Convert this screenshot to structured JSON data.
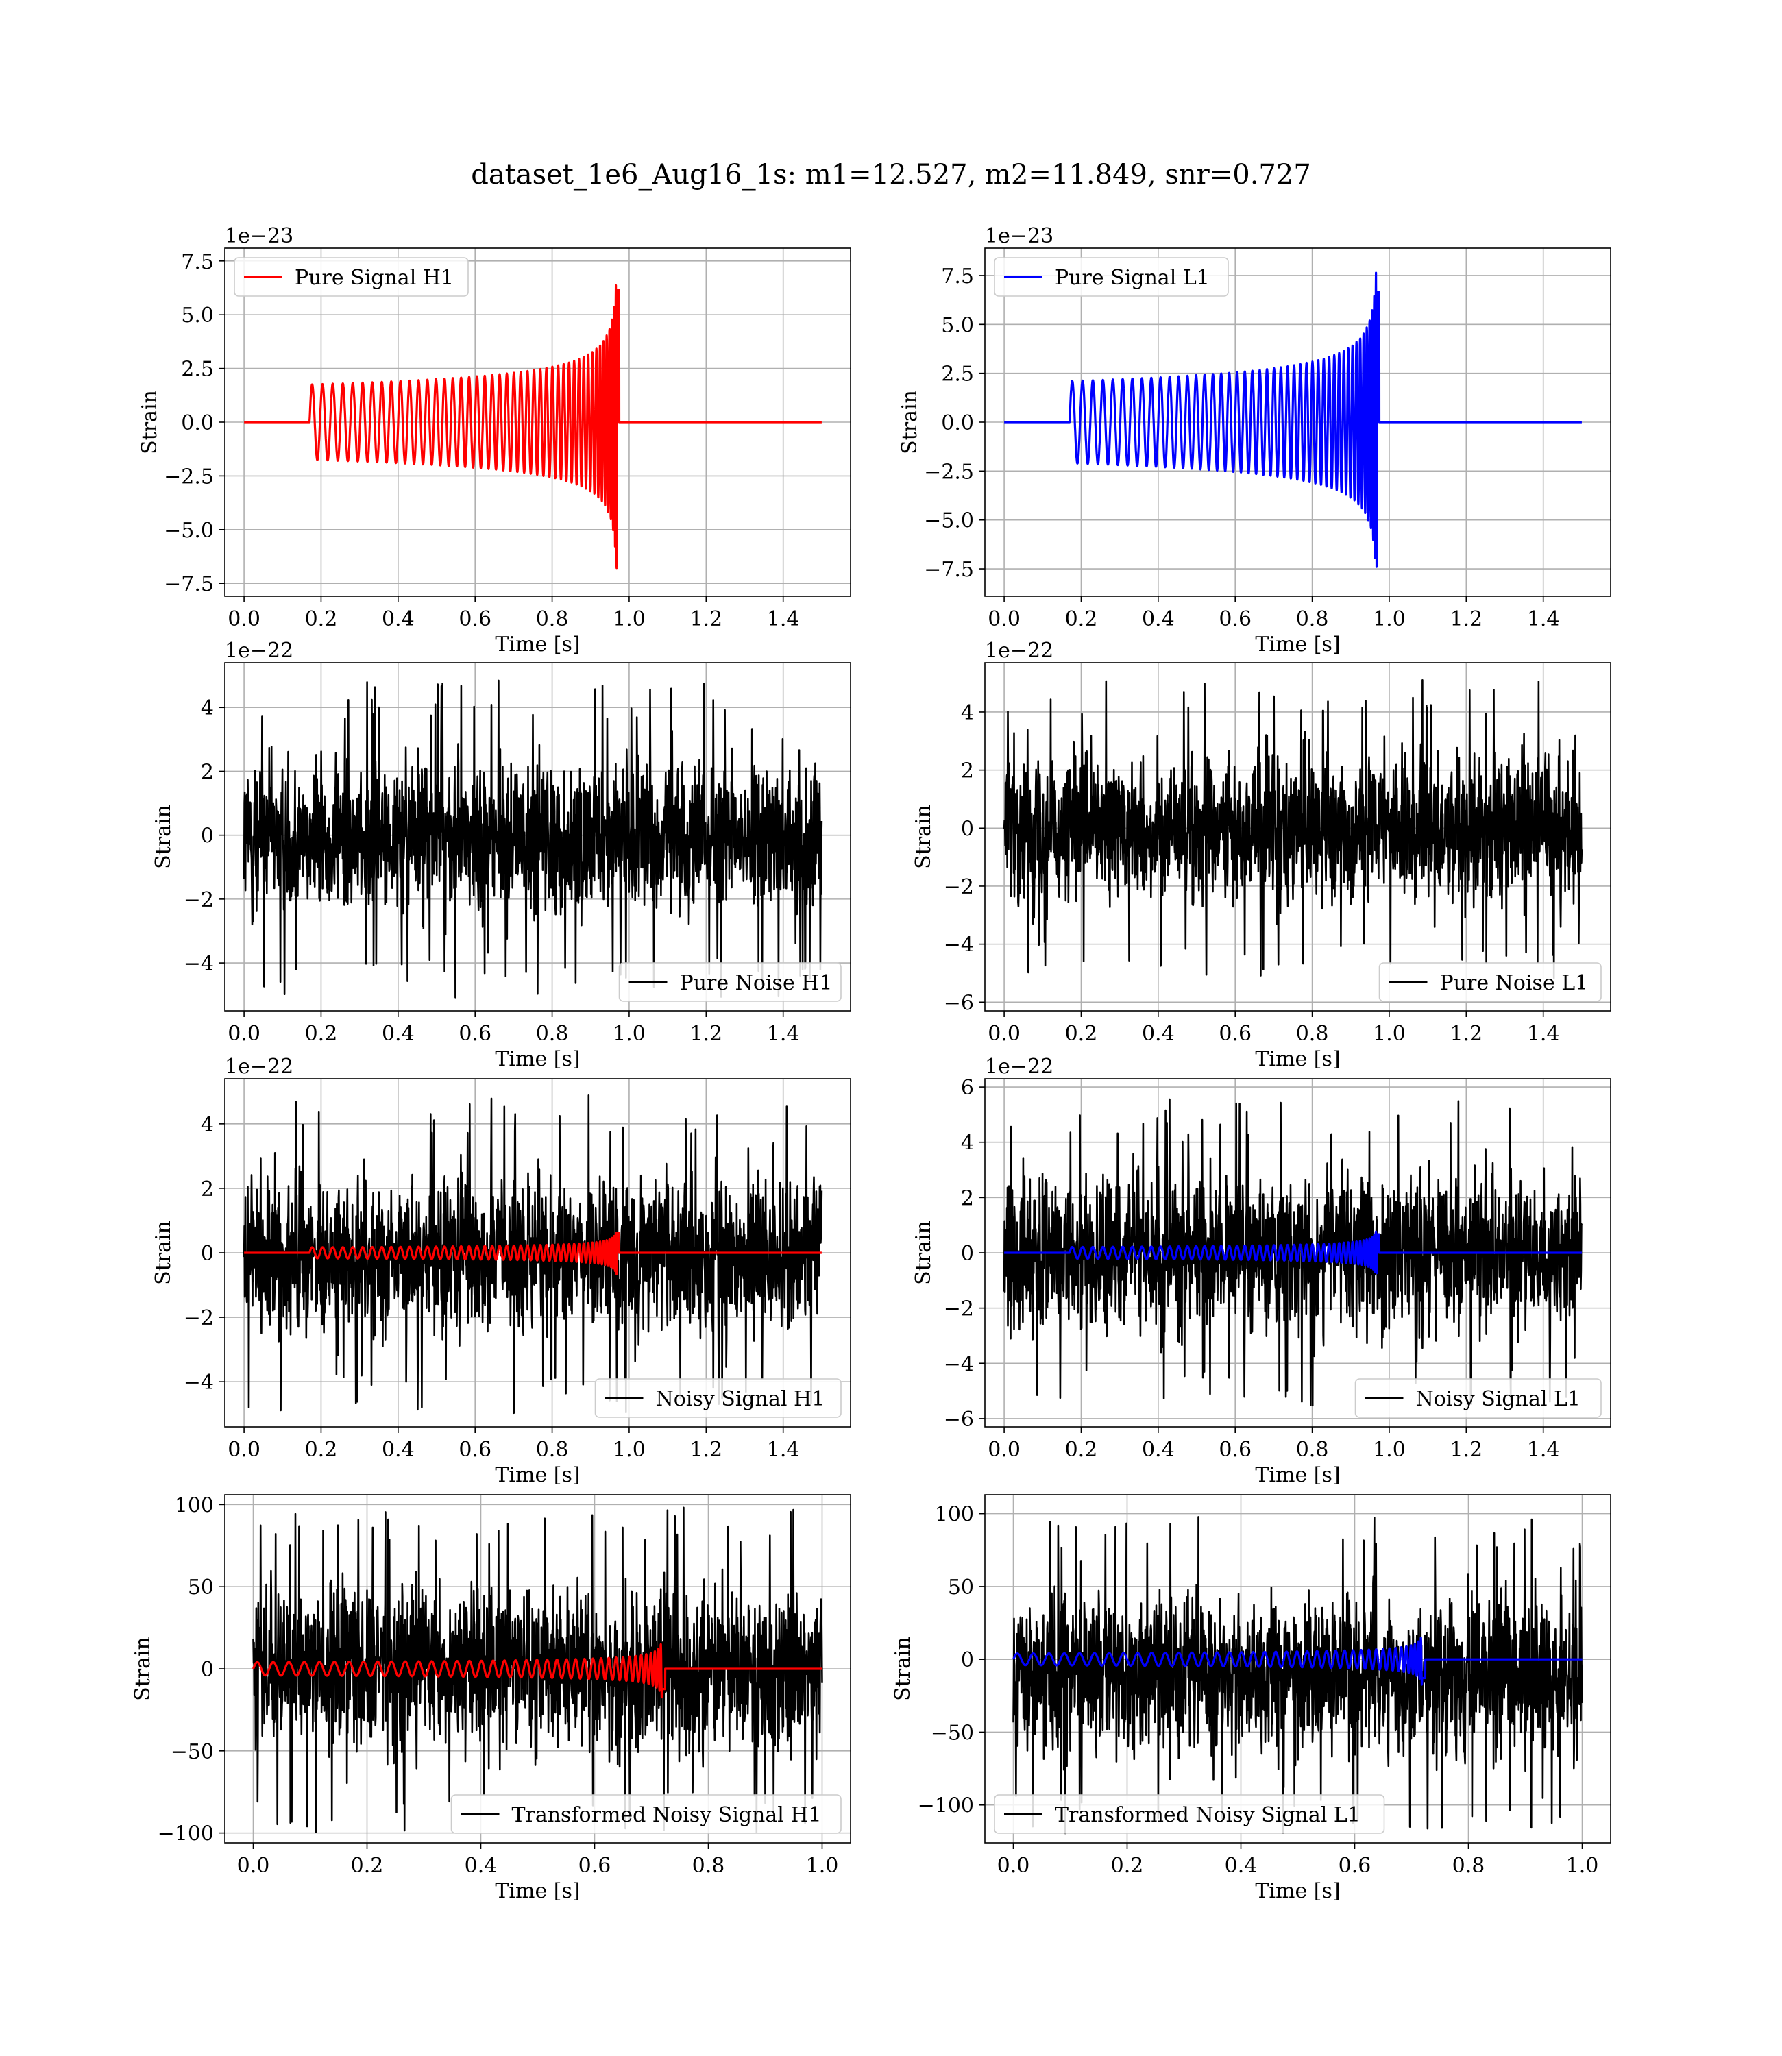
{
  "figure": {
    "title": "dataset_1e6_Aug16_1s: m1=12.527, m2=11.849, snr=0.727"
  },
  "colors": {
    "signal_h1": "#ff0000",
    "signal_l1": "#0000ff",
    "noise": "#000000",
    "grid": "#b0b0b0"
  },
  "chart_data": [
    {
      "type": "line",
      "panel": "H1 pure signal",
      "xlabel": "Time [s]",
      "ylabel": "Strain",
      "offset_text": "1e−23",
      "xlim": [
        -0.05,
        1.575
      ],
      "ylim": [
        -8.1,
        8.1
      ],
      "xticks": [
        0.0,
        0.2,
        0.4,
        0.6,
        0.8,
        1.0,
        1.2,
        1.4
      ],
      "xticklabels": [
        "0.0",
        "0.2",
        "0.4",
        "0.6",
        "0.8",
        "1.0",
        "1.2",
        "1.4"
      ],
      "yticks": [
        -7.5,
        -5.0,
        -2.5,
        0.0,
        2.5,
        5.0,
        7.5
      ],
      "yticklabels": [
        "−7.5",
        "−5.0",
        "−2.5",
        "0.0",
        "2.5",
        "5.0",
        "7.5"
      ],
      "grid": true,
      "legend_loc": "upper left",
      "series": [
        {
          "name": "Pure Signal H1",
          "kind": "chirp",
          "color": "#ff0000",
          "x_range": [
            0.0,
            1.5
          ],
          "onset": 0.17,
          "merger": 0.97,
          "early_amp": 1.75,
          "peak_amp": 7.3
        }
      ]
    },
    {
      "type": "line",
      "panel": "L1 pure signal",
      "xlabel": "Time [s]",
      "ylabel": "Strain",
      "offset_text": "1e−23",
      "xlim": [
        -0.05,
        1.575
      ],
      "ylim": [
        -8.9,
        8.9
      ],
      "xticks": [
        0.0,
        0.2,
        0.4,
        0.6,
        0.8,
        1.0,
        1.2,
        1.4
      ],
      "xticklabels": [
        "0.0",
        "0.2",
        "0.4",
        "0.6",
        "0.8",
        "1.0",
        "1.2",
        "1.4"
      ],
      "yticks": [
        -7.5,
        -5.0,
        -2.5,
        0.0,
        2.5,
        5.0,
        7.5
      ],
      "yticklabels": [
        "−7.5",
        "−5.0",
        "−2.5",
        "0.0",
        "2.5",
        "5.0",
        "7.5"
      ],
      "grid": true,
      "legend_loc": "upper left",
      "series": [
        {
          "name": "Pure Signal L1",
          "kind": "chirp",
          "color": "#0000ff",
          "x_range": [
            0.0,
            1.5
          ],
          "onset": 0.17,
          "merger": 0.97,
          "early_amp": 2.1,
          "peak_amp": 7.9
        }
      ]
    },
    {
      "type": "line",
      "panel": "H1 pure noise",
      "xlabel": "Time [s]",
      "ylabel": "Strain",
      "offset_text": "1e−22",
      "xlim": [
        -0.05,
        1.575
      ],
      "ylim": [
        -5.5,
        5.4
      ],
      "xticks": [
        0.0,
        0.2,
        0.4,
        0.6,
        0.8,
        1.0,
        1.2,
        1.4
      ],
      "xticklabels": [
        "0.0",
        "0.2",
        "0.4",
        "0.6",
        "0.8",
        "1.0",
        "1.2",
        "1.4"
      ],
      "yticks": [
        -4,
        -2,
        0,
        2,
        4
      ],
      "yticklabels": [
        "−4",
        "−2",
        "0",
        "2",
        "4"
      ],
      "grid": true,
      "legend_loc": "lower right",
      "series": [
        {
          "name": "Pure Noise H1",
          "kind": "noise",
          "color": "#000000",
          "x_range": [
            0.0,
            1.5
          ],
          "range": [
            -5.1,
            4.9
          ]
        }
      ]
    },
    {
      "type": "line",
      "panel": "L1 pure noise",
      "xlabel": "Time [s]",
      "ylabel": "Strain",
      "offset_text": "1e−22",
      "xlim": [
        -0.05,
        1.575
      ],
      "ylim": [
        -6.3,
        5.7
      ],
      "xticks": [
        0.0,
        0.2,
        0.4,
        0.6,
        0.8,
        1.0,
        1.2,
        1.4
      ],
      "xticklabels": [
        "0.0",
        "0.2",
        "0.4",
        "0.6",
        "0.8",
        "1.0",
        "1.2",
        "1.4"
      ],
      "yticks": [
        -6,
        -4,
        -2,
        0,
        2,
        4
      ],
      "yticklabels": [
        "−6",
        "−4",
        "−2",
        "0",
        "2",
        "4"
      ],
      "grid": true,
      "legend_loc": "lower right",
      "series": [
        {
          "name": "Pure Noise L1",
          "kind": "noise",
          "color": "#000000",
          "x_range": [
            0.0,
            1.5
          ],
          "range": [
            -5.2,
            5.2
          ]
        }
      ]
    },
    {
      "type": "line",
      "panel": "H1 noisy signal",
      "xlabel": "Time [s]",
      "ylabel": "Strain",
      "offset_text": "1e−22",
      "xlim": [
        -0.05,
        1.575
      ],
      "ylim": [
        -5.4,
        5.4
      ],
      "xticks": [
        0.0,
        0.2,
        0.4,
        0.6,
        0.8,
        1.0,
        1.2,
        1.4
      ],
      "xticklabels": [
        "0.0",
        "0.2",
        "0.4",
        "0.6",
        "0.8",
        "1.0",
        "1.2",
        "1.4"
      ],
      "yticks": [
        -4,
        -2,
        0,
        2,
        4
      ],
      "yticklabels": [
        "−4",
        "−2",
        "0",
        "2",
        "4"
      ],
      "grid": true,
      "legend_loc": "lower right",
      "series": [
        {
          "name": "Noisy Signal H1",
          "kind": "noise",
          "color": "#000000",
          "x_range": [
            0.0,
            1.5
          ],
          "range": [
            -5.0,
            4.9
          ]
        },
        {
          "kind": "chirp",
          "color": "#ff0000",
          "x_range": [
            0.0,
            1.5
          ],
          "onset": 0.17,
          "merger": 0.97,
          "early_amp": 0.17,
          "peak_amp": 0.73
        }
      ]
    },
    {
      "type": "line",
      "panel": "L1 noisy signal",
      "xlabel": "Time [s]",
      "ylabel": "Strain",
      "offset_text": "1e−22",
      "xlim": [
        -0.05,
        1.575
      ],
      "ylim": [
        -6.3,
        6.3
      ],
      "xticks": [
        0.0,
        0.2,
        0.4,
        0.6,
        0.8,
        1.0,
        1.2,
        1.4
      ],
      "xticklabels": [
        "0.0",
        "0.2",
        "0.4",
        "0.6",
        "0.8",
        "1.0",
        "1.2",
        "1.4"
      ],
      "yticks": [
        -6,
        -4,
        -2,
        0,
        2,
        4,
        6
      ],
      "yticklabels": [
        "−6",
        "−4",
        "−2",
        "0",
        "2",
        "4",
        "6"
      ],
      "grid": true,
      "legend_loc": "lower right",
      "series": [
        {
          "name": "Noisy Signal L1",
          "kind": "noise",
          "color": "#000000",
          "x_range": [
            0.0,
            1.5
          ],
          "range": [
            -5.6,
            5.6
          ]
        },
        {
          "kind": "chirp",
          "color": "#0000ff",
          "x_range": [
            0.0,
            1.5
          ],
          "onset": 0.17,
          "merger": 0.97,
          "early_amp": 0.21,
          "peak_amp": 0.79
        }
      ]
    },
    {
      "type": "line",
      "panel": "H1 transformed",
      "xlabel": "Time [s]",
      "ylabel": "Strain",
      "offset_text": "",
      "xlim": [
        -0.05,
        1.05
      ],
      "ylim": [
        -106,
        106
      ],
      "xticks": [
        0.0,
        0.2,
        0.4,
        0.6,
        0.8,
        1.0
      ],
      "xticklabels": [
        "0.0",
        "0.2",
        "0.4",
        "0.6",
        "0.8",
        "1.0"
      ],
      "yticks": [
        -100,
        -50,
        0,
        50,
        100
      ],
      "yticklabels": [
        "−100",
        "−50",
        "0",
        "50",
        "100"
      ],
      "grid": true,
      "legend_loc": "lower right",
      "series": [
        {
          "name": "Transformed Noisy Signal H1",
          "kind": "noise",
          "color": "#000000",
          "x_range": [
            0.0,
            1.0
          ],
          "range": [
            -100,
            100
          ]
        },
        {
          "kind": "chirp",
          "color": "#ff0000",
          "x_range": [
            0.0,
            1.0
          ],
          "onset": 0.0,
          "merger": 0.72,
          "early_amp": 4,
          "peak_amp": 18
        }
      ]
    },
    {
      "type": "line",
      "panel": "L1 transformed",
      "xlabel": "Time [s]",
      "ylabel": "Strain",
      "offset_text": "",
      "xlim": [
        -0.05,
        1.05
      ],
      "ylim": [
        -126,
        113
      ],
      "xticks": [
        0.0,
        0.2,
        0.4,
        0.6,
        0.8,
        1.0
      ],
      "xticklabels": [
        "0.0",
        "0.2",
        "0.4",
        "0.6",
        "0.8",
        "1.0"
      ],
      "yticks": [
        -100,
        -50,
        0,
        50,
        100
      ],
      "yticklabels": [
        "−100",
        "−50",
        "0",
        "50",
        "100"
      ],
      "grid": true,
      "legend_loc": "lower left",
      "series": [
        {
          "name": "Transformed Noisy Signal L1",
          "kind": "noise",
          "color": "#000000",
          "x_range": [
            0.0,
            1.0
          ],
          "range": [
            -120,
            100
          ]
        },
        {
          "kind": "chirp",
          "color": "#0000ff",
          "x_range": [
            0.0,
            1.0
          ],
          "onset": 0.0,
          "merger": 0.72,
          "early_amp": 4,
          "peak_amp": 22
        }
      ]
    }
  ]
}
